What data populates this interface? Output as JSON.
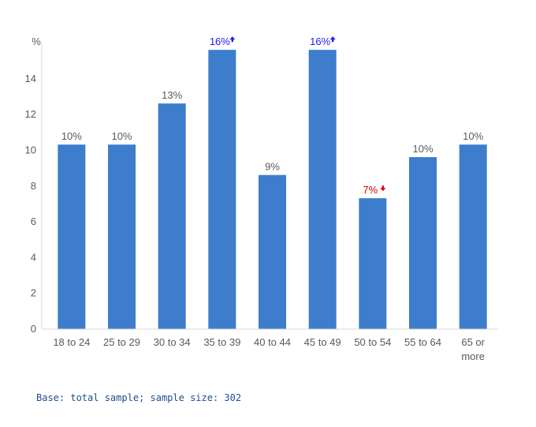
{
  "chart_data": {
    "type": "bar",
    "ylabel": "%",
    "ylim": [
      0,
      16
    ],
    "yticks": [
      0,
      2,
      4,
      6,
      8,
      10,
      12,
      14
    ],
    "categories": [
      "18 to 24",
      "25 to 29",
      "30 to 34",
      "35 to 39",
      "40 to 44",
      "45 to 49",
      "50 to 54",
      "55 to 64",
      "65 or more"
    ],
    "values": [
      10.3,
      10.3,
      12.6,
      15.6,
      8.6,
      15.6,
      7.3,
      9.6,
      10.3
    ],
    "data_labels": [
      "10%",
      "10%",
      "13%",
      "16%",
      "9%",
      "16%",
      "7%",
      "10%",
      "10%"
    ],
    "significance": [
      "none",
      "none",
      "none",
      "up",
      "none",
      "up",
      "down",
      "none",
      "none"
    ],
    "colors": {
      "bar": "#3d7dcc",
      "label": "#595959",
      "up": "#1a1aff",
      "down": "#e00000",
      "axis": "#d9d9d9"
    }
  },
  "footnote": "Base: total sample; sample size: 302"
}
